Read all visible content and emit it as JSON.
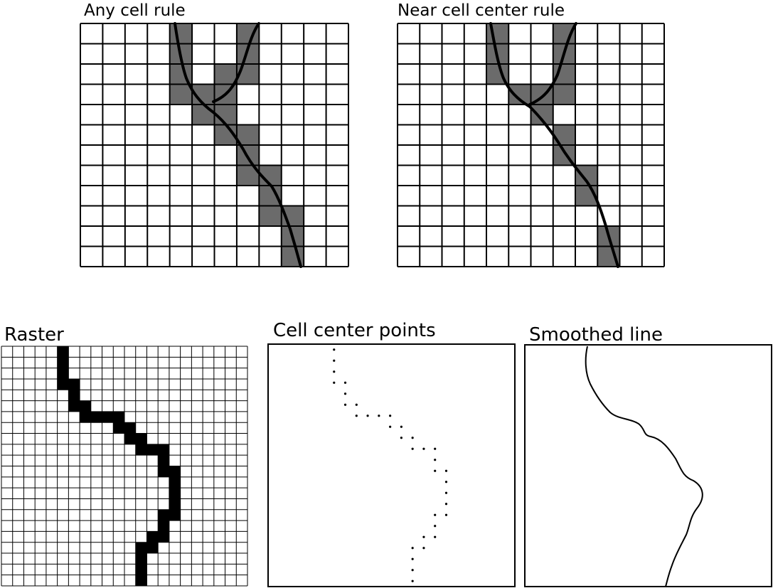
{
  "figure": {
    "panels": {
      "any_cell": {
        "title": "Any cell rule",
        "grid_cols": 12,
        "grid_rows": 12,
        "filled_cells": [
          [
            4,
            0
          ],
          [
            7,
            0
          ],
          [
            4,
            1
          ],
          [
            7,
            1
          ],
          [
            4,
            2
          ],
          [
            6,
            2
          ],
          [
            7,
            2
          ],
          [
            4,
            3
          ],
          [
            5,
            3
          ],
          [
            6,
            3
          ],
          [
            5,
            4
          ],
          [
            6,
            4
          ],
          [
            6,
            5
          ],
          [
            7,
            5
          ],
          [
            7,
            6
          ],
          [
            7,
            7
          ],
          [
            8,
            7
          ],
          [
            8,
            8
          ],
          [
            8,
            9
          ],
          [
            9,
            9
          ],
          [
            9,
            10
          ],
          [
            9,
            11
          ]
        ]
      },
      "near_center": {
        "title": "Near cell center rule",
        "grid_cols": 12,
        "grid_rows": 12,
        "filled_cells": [
          [
            4,
            0
          ],
          [
            7,
            0
          ],
          [
            4,
            1
          ],
          [
            7,
            1
          ],
          [
            4,
            2
          ],
          [
            7,
            2
          ],
          [
            5,
            3
          ],
          [
            6,
            3
          ],
          [
            7,
            3
          ],
          [
            6,
            4
          ],
          [
            7,
            5
          ],
          [
            7,
            6
          ],
          [
            8,
            7
          ],
          [
            8,
            8
          ],
          [
            9,
            10
          ],
          [
            9,
            11
          ]
        ]
      },
      "raster": {
        "title": "Raster",
        "grid_cols": 22,
        "grid_rows": 22,
        "path_cells": [
          [
            5,
            0
          ],
          [
            5,
            1
          ],
          [
            5,
            2
          ],
          [
            5,
            3
          ],
          [
            6,
            3
          ],
          [
            6,
            4
          ],
          [
            6,
            5
          ],
          [
            7,
            5
          ],
          [
            7,
            6
          ],
          [
            8,
            6
          ],
          [
            9,
            6
          ],
          [
            10,
            6
          ],
          [
            10,
            7
          ],
          [
            11,
            7
          ],
          [
            11,
            8
          ],
          [
            12,
            8
          ],
          [
            12,
            9
          ],
          [
            13,
            9
          ],
          [
            14,
            9
          ],
          [
            14,
            10
          ],
          [
            14,
            11
          ],
          [
            15,
            11
          ],
          [
            15,
            12
          ],
          [
            15,
            13
          ],
          [
            15,
            14
          ],
          [
            15,
            15
          ],
          [
            14,
            15
          ],
          [
            14,
            16
          ],
          [
            14,
            17
          ],
          [
            13,
            17
          ],
          [
            13,
            18
          ],
          [
            12,
            18
          ],
          [
            12,
            19
          ],
          [
            12,
            20
          ],
          [
            12,
            21
          ]
        ]
      },
      "center_points": {
        "title": "Cell center points"
      },
      "smoothed": {
        "title": "Smoothed line"
      }
    }
  }
}
